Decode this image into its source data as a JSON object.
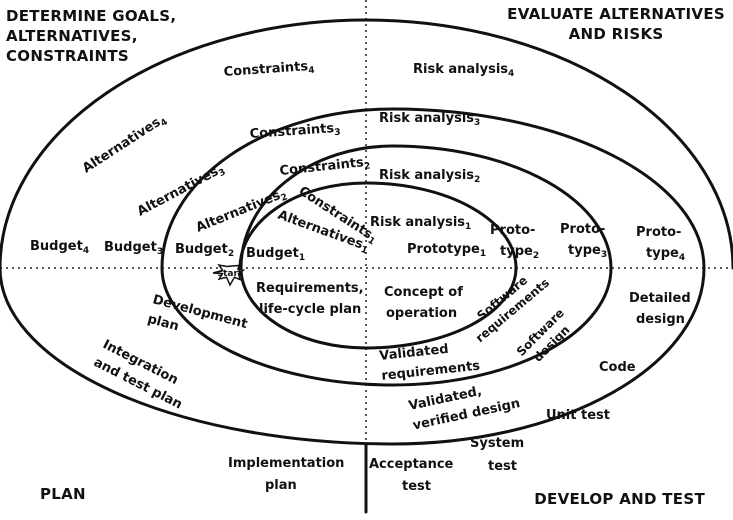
{
  "quadrants": {
    "top_left": [
      "DETERMINE GOALS,",
      "ALTERNATIVES,",
      "CONSTRAINTS"
    ],
    "top_right": [
      "EVALUATE ALTERNATIVES",
      "AND RISKS"
    ],
    "bottom_left": "PLAN",
    "bottom_right": "DEVELOP AND TEST"
  },
  "start": "start",
  "labels": {
    "constraints_4": {
      "text": "Constraints",
      "sub": "4"
    },
    "constraints_3": {
      "text": "Constraints",
      "sub": "3"
    },
    "constraints_2": {
      "text": "Constraints",
      "sub": "2"
    },
    "constraints_1": {
      "text": "Constraints",
      "sub": "1"
    },
    "alternatives_4": {
      "text": "Alternatives",
      "sub": "4"
    },
    "alternatives_3": {
      "text": "Alternatives",
      "sub": "3"
    },
    "alternatives_2": {
      "text": "Alternatives",
      "sub": "2"
    },
    "alternatives_1": {
      "text": "Alternatives",
      "sub": "1"
    },
    "risk_4": {
      "text": "Risk analysis",
      "sub": "4"
    },
    "risk_3": {
      "text": "Risk analysis",
      "sub": "3"
    },
    "risk_2": {
      "text": "Risk analysis",
      "sub": "2"
    },
    "risk_1": {
      "text": "Risk analysis",
      "sub": "1"
    },
    "prototype_1": {
      "text": "Prototype",
      "sub": "1"
    },
    "proto_2": {
      "line1": "Proto-",
      "line2": "type",
      "sub": "2"
    },
    "proto_3": {
      "line1": "Proto-",
      "line2": "type",
      "sub": "3"
    },
    "proto_4": {
      "line1": "Proto-",
      "line2": "type",
      "sub": "4"
    },
    "budget_4": {
      "text": "Budget",
      "sub": "4"
    },
    "budget_3": {
      "text": "Budget",
      "sub": "3"
    },
    "budget_2": {
      "text": "Budget",
      "sub": "2"
    },
    "budget_1": {
      "text": "Budget",
      "sub": "1"
    },
    "requirements_plan": [
      "Requirements,",
      "life-cycle plan"
    ],
    "concept": [
      "Concept of",
      "operation"
    ],
    "software_requirements": [
      "Software",
      "requirements"
    ],
    "software_design": [
      "Software",
      "design"
    ],
    "detailed_design": [
      "Detailed",
      "design"
    ],
    "code": "Code",
    "unit_test": "Unit test",
    "system_test": [
      "System",
      "test"
    ],
    "acceptance_test": [
      "Acceptance",
      "test"
    ],
    "implementation_plan": [
      "Implementation",
      "plan"
    ],
    "validated_requirements": [
      "Validated",
      "requirements"
    ],
    "validated_design": [
      "Validated,",
      "verified design"
    ],
    "development_plan": [
      "Development",
      "plan"
    ],
    "integration_plan": [
      "Integration",
      "and test plan"
    ]
  }
}
